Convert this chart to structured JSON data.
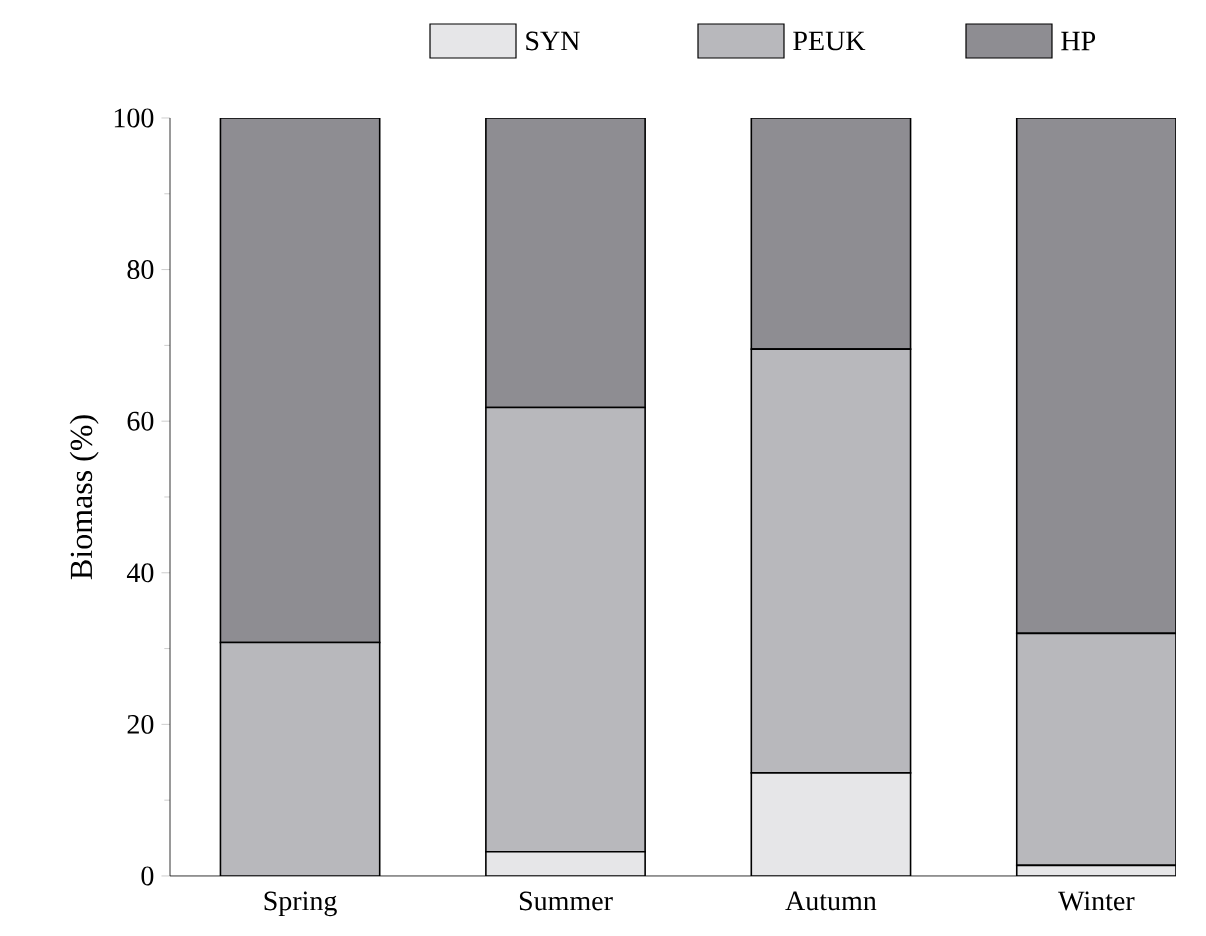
{
  "chart_data": {
    "type": "bar",
    "stacked": true,
    "ylabel": "Biomass (%)",
    "categories": [
      "Spring",
      "Summer",
      "Autumn",
      "Winter"
    ],
    "series": [
      {
        "name": "SYN",
        "color": "#e6e6e8",
        "values": [
          0,
          3.2,
          13.6,
          1.4
        ]
      },
      {
        "name": "PEUK",
        "color": "#b8b8bc",
        "values": [
          30.8,
          58.6,
          55.9,
          30.6
        ]
      },
      {
        "name": "HP",
        "color": "#8e8d92",
        "values": [
          69.2,
          38.2,
          30.5,
          68.0
        ]
      }
    ],
    "ylim": [
      0,
      100
    ],
    "yticks": [
      0,
      20,
      40,
      60,
      80,
      100
    ],
    "legend": "top"
  }
}
